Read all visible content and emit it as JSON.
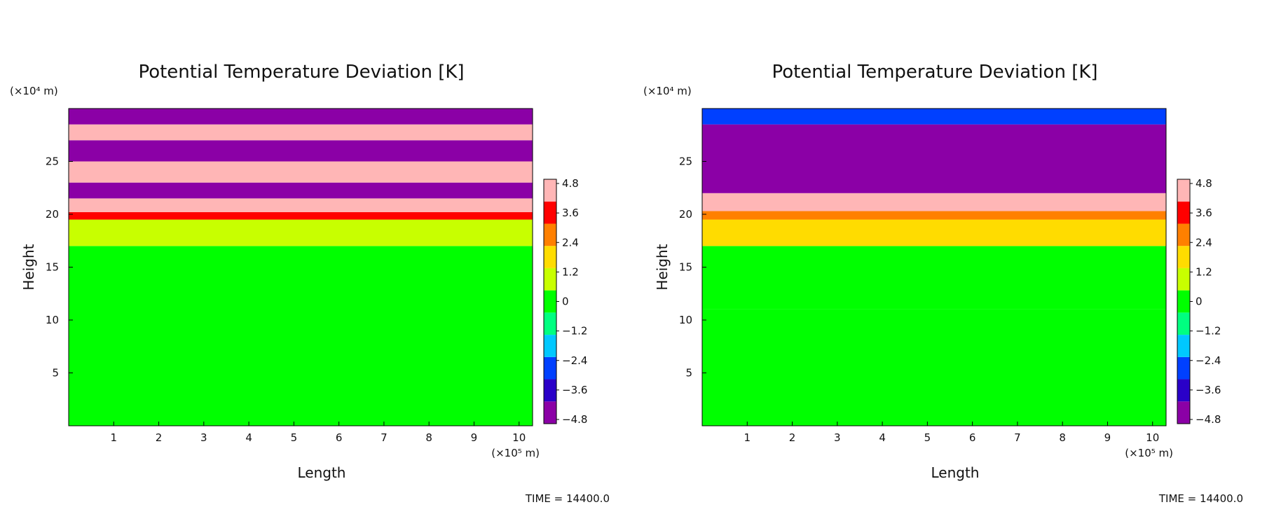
{
  "chart_data": [
    {
      "type": "heatmap",
      "title": "Potential Temperature Deviation [K]",
      "xlabel": "Length",
      "ylabel": "Height",
      "x_unit": "(×10⁵ m)",
      "y_unit": "(×10⁴ m)",
      "xlim": [
        0,
        10.3
      ],
      "ylim": [
        0,
        30
      ],
      "x_ticks": [
        "1",
        "2",
        "3",
        "4",
        "5",
        "6",
        "7",
        "8",
        "9",
        "10"
      ],
      "y_ticks": [
        "5",
        "10",
        "15",
        "20",
        "25"
      ],
      "colorbar": {
        "range": [
          -4.8,
          4.8
        ],
        "labels": [
          "4.8",
          "3.6",
          "2.4",
          "1.2",
          "0",
          "−1.2",
          "−2.4",
          "−3.6",
          "−4.8"
        ],
        "colors": [
          "#8b00a6",
          "#2a00c8",
          "#0040ff",
          "#00c8ff",
          "#00ff80",
          "#00ff00",
          "#c8ff00",
          "#ffdc00",
          "#ff8000",
          "#ff0000",
          "#ffb6b6"
        ]
      },
      "footer": "TIME = 14400.0",
      "field": {
        "description": "lower troposphere near 0 K; warm band (1–4 K) near 18–20; stratospheric banding above 20 with alternating ±4.8 K stripes",
        "layers": [
          {
            "y_from": 0,
            "y_to": 17,
            "value": 0.1
          },
          {
            "y_from": 17,
            "y_to": 19.5,
            "value": 0.6
          },
          {
            "y_from": 19.5,
            "y_to": 20.2,
            "value": 3.2
          },
          {
            "y_from": 20.2,
            "y_to": 21.5,
            "value": 4.8
          },
          {
            "y_from": 21.5,
            "y_to": 23,
            "value": -4.8
          },
          {
            "y_from": 23,
            "y_to": 25,
            "value": 4.8
          },
          {
            "y_from": 25,
            "y_to": 27,
            "value": -4.8
          },
          {
            "y_from": 27,
            "y_to": 28.5,
            "value": 4.8
          },
          {
            "y_from": 28.5,
            "y_to": 30,
            "value": -4.8
          }
        ]
      }
    },
    {
      "type": "heatmap",
      "title": "Potential Temperature Deviation [K]",
      "xlabel": "Length",
      "ylabel": "Height",
      "x_unit": "(×10⁵ m)",
      "y_unit": "(×10⁴ m)",
      "xlim": [
        0,
        10.3
      ],
      "ylim": [
        0,
        30
      ],
      "x_ticks": [
        "1",
        "2",
        "3",
        "4",
        "5",
        "6",
        "7",
        "8",
        "9",
        "10"
      ],
      "y_ticks": [
        "5",
        "10",
        "15",
        "20",
        "25"
      ],
      "colorbar": {
        "range": [
          -4.8,
          4.8
        ],
        "labels": [
          "4.8",
          "3.6",
          "2.4",
          "1.2",
          "0",
          "−1.2",
          "−2.4",
          "−3.6",
          "−4.8"
        ],
        "colors": [
          "#8b00a6",
          "#2a00c8",
          "#0040ff",
          "#00c8ff",
          "#00ff80",
          "#00ff00",
          "#c8ff00",
          "#ffdc00",
          "#ff8000",
          "#ff0000",
          "#ffb6b6"
        ]
      },
      "footer": "TIME = 14400.0",
      "field": {
        "description": "cold dome aloft (−4.8 K) centred near x=2, y=22–29; warm band near 18–20; weak cold anomaly below 11",
        "layers": [
          {
            "y_from": 0,
            "y_to": 11,
            "value": -0.4
          },
          {
            "y_from": 11,
            "y_to": 17,
            "value": 0.4
          },
          {
            "y_from": 17,
            "y_to": 19.5,
            "value": 1.6
          },
          {
            "y_from": 19.5,
            "y_to": 20.3,
            "value": 3.0
          },
          {
            "y_from": 20.3,
            "y_to": 22,
            "value": 4.0
          },
          {
            "y_from": 22,
            "y_to": 28.5,
            "value": -4.8
          },
          {
            "y_from": 28.5,
            "y_to": 30,
            "value": -2.4
          }
        ]
      }
    }
  ]
}
